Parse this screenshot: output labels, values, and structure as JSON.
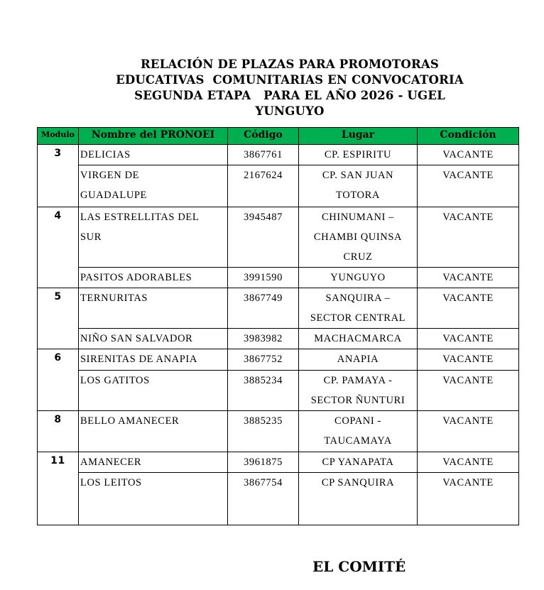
{
  "title_lines": [
    "RELACIÓN DE PLAZAS PARA PROMOTORAS",
    "EDUCATIVAS  COMUNITARIAS EN CONVOCATORIA",
    "SEGUNDA ETAPA   PARA EL AÑO 2026 - UGEL",
    "YUNGUYO"
  ],
  "table": {
    "headers": {
      "modulo": "Modulo",
      "nombre": "Nombre del PRONOEI",
      "codigo": "Código",
      "lugar": "Lugar",
      "condicion": "Condición"
    },
    "header_color": "#00b050",
    "groups": [
      {
        "modulo": "3",
        "rows": [
          {
            "nombre": "DELICIAS",
            "codigo": "3867761",
            "lugar": "CP. ESPIRITU",
            "condicion": "VACANTE"
          },
          {
            "nombre": "VIRGEN DE\nGUADALUPE",
            "codigo": "2167624",
            "lugar": "CP. SAN JUAN\nTOTORA",
            "condicion": "VACANTE"
          }
        ]
      },
      {
        "modulo": "4",
        "rows": [
          {
            "nombre": "LAS ESTRELLITAS DEL\nSUR",
            "codigo": "3945487",
            "lugar": "CHINUMANI –\nCHAMBI QUINSA\nCRUZ",
            "condicion": "VACANTE"
          },
          {
            "nombre": "PASITOS ADORABLES",
            "codigo": "3991590",
            "lugar": "YUNGUYO",
            "condicion": "VACANTE"
          }
        ]
      },
      {
        "modulo": "5",
        "rows": [
          {
            "nombre": "TERNURITAS",
            "codigo": "3867749",
            "lugar": "SANQUIRA –\nSECTOR CENTRAL",
            "condicion": "VACANTE"
          },
          {
            "nombre": "NIÑO SAN SALVADOR",
            "codigo": "3983982",
            "lugar": "MACHACMARCA",
            "condicion": "VACANTE"
          }
        ]
      },
      {
        "modulo": "6",
        "rows": [
          {
            "nombre": "SIRENITAS DE ANAPIA",
            "codigo": "3867752",
            "lugar": "ANAPIA",
            "condicion": "VACANTE"
          },
          {
            "nombre": "LOS GATITOS",
            "codigo": "3885234",
            "lugar": "CP. PAMAYA -\nSECTOR ÑUNTURI",
            "condicion": "VACANTE"
          }
        ]
      },
      {
        "modulo": "8",
        "rows": [
          {
            "nombre": "BELLO AMANECER",
            "codigo": "3885235",
            "lugar": "COPANI -\nTAUCAMAYA",
            "condicion": "VACANTE"
          }
        ]
      },
      {
        "modulo": "11",
        "rows": [
          {
            "nombre": "AMANECER",
            "codigo": "3961875",
            "lugar": "CP YANAPATA",
            "condicion": "VACANTE"
          },
          {
            "nombre": "LOS LEITOS",
            "codigo": "3867754",
            "lugar": "CP SANQUIRA",
            "condicion": "VACANTE"
          }
        ]
      }
    ]
  },
  "footer": "EL COMITÉ"
}
